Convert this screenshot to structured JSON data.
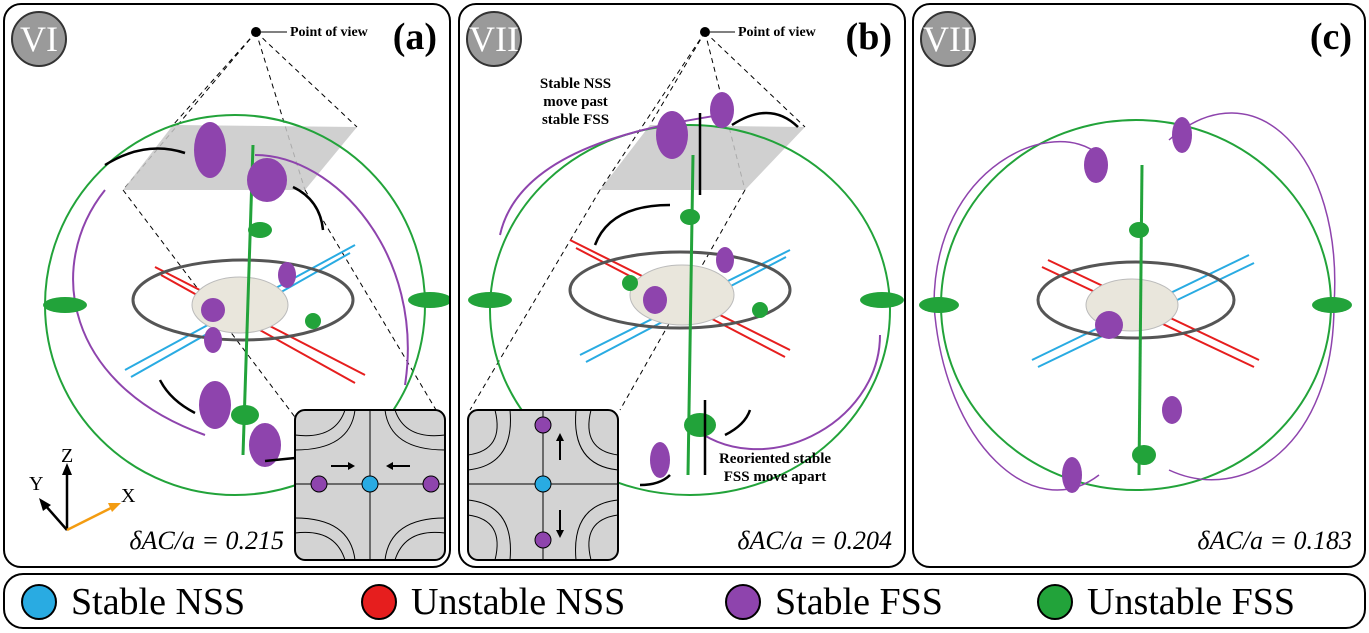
{
  "panels": [
    {
      "id": "a",
      "regime": "VI",
      "label": "(a)",
      "point_of_view": "Point of view",
      "delta": "δAC/a = 0.215"
    },
    {
      "id": "b",
      "regime": "VII",
      "label": "(b)",
      "point_of_view": "Point of view",
      "delta": "δAC/a = 0.204",
      "note_top": "Stable NSS move past stable FSS",
      "note_bottom": "Reoriented stable FSS move apart"
    },
    {
      "id": "c",
      "regime": "VII",
      "label": "(c)",
      "delta": "δAC/a = 0.183"
    }
  ],
  "axes": {
    "z": "Z",
    "y": "Y",
    "x": "X"
  },
  "legend": [
    {
      "label": "Stable NSS",
      "color": "#29abe2"
    },
    {
      "label": "Unstable NSS",
      "color": "#e61e1e"
    },
    {
      "label": "Stable FSS",
      "color": "#8e44ad"
    },
    {
      "label": "Unstable FSS",
      "color": "#22a33a"
    }
  ],
  "colors": {
    "stable_nss": "#29abe2",
    "unstable_nss": "#e61e1e",
    "stable_fss": "#8e44ad",
    "unstable_fss": "#22a33a",
    "plane": "#c8c8c8",
    "ellipsoid": "#e9e6dc"
  }
}
